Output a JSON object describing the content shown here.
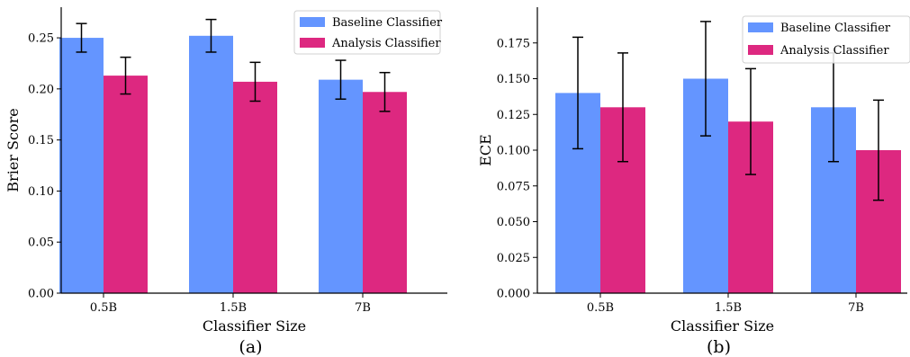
{
  "colors": {
    "baseline": "#6495ff",
    "analysis": "#dd2880"
  },
  "chart_data": [
    {
      "type": "bar",
      "subcaption": "(a)",
      "xlabel": "Classifier Size",
      "ylabel": "Brier Score",
      "categories": [
        "0.5B",
        "1.5B",
        "7B"
      ],
      "ylim": [
        0,
        0.28
      ],
      "yticks": [
        "0.00",
        "0.05",
        "0.10",
        "0.15",
        "0.20",
        "0.25"
      ],
      "ytick_values": [
        0,
        0.05,
        0.1,
        0.15,
        0.2,
        0.25
      ],
      "grid": false,
      "legend_position": "top-right",
      "series": [
        {
          "name": "Baseline Classifier",
          "color": "#6495ff",
          "values": [
            0.25,
            0.252,
            0.209
          ],
          "errors": [
            0.014,
            0.016,
            0.019
          ]
        },
        {
          "name": "Analysis Classifier",
          "color": "#dd2880",
          "values": [
            0.213,
            0.207,
            0.197
          ],
          "errors": [
            0.018,
            0.019,
            0.019
          ]
        }
      ]
    },
    {
      "type": "bar",
      "subcaption": "(b)",
      "xlabel": "Classifier Size",
      "ylabel": "ECE",
      "categories": [
        "0.5B",
        "1.5B",
        "7B"
      ],
      "ylim": [
        0,
        0.2
      ],
      "yticks": [
        "0.000",
        "0.025",
        "0.050",
        "0.075",
        "0.100",
        "0.125",
        "0.150",
        "0.175"
      ],
      "ytick_values": [
        0,
        0.025,
        0.05,
        0.075,
        0.1,
        0.125,
        0.15,
        0.175
      ],
      "grid": false,
      "legend_position": "top-right",
      "series": [
        {
          "name": "Baseline Classifier",
          "color": "#6495ff",
          "values": [
            0.14,
            0.15,
            0.13
          ],
          "errors": [
            0.039,
            0.04,
            0.038
          ]
        },
        {
          "name": "Analysis Classifier",
          "color": "#dd2880",
          "values": [
            0.13,
            0.12,
            0.1
          ],
          "errors": [
            0.038,
            0.037,
            0.035
          ]
        }
      ]
    }
  ]
}
